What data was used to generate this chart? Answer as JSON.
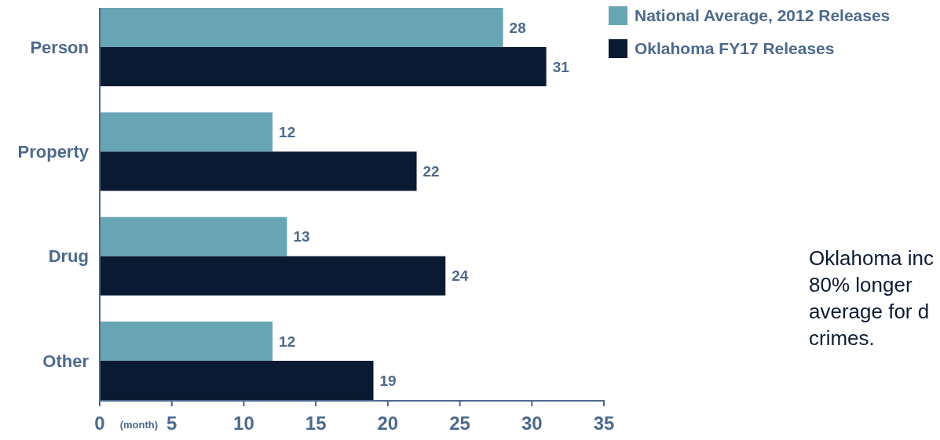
{
  "chart_data": {
    "type": "bar",
    "orientation": "horizontal",
    "categories": [
      "Person",
      "Property",
      "Drug",
      "Other"
    ],
    "series": [
      {
        "name": "National Average, 2012 Releases",
        "color": "#67a5b5",
        "values": [
          28,
          12,
          13,
          12
        ]
      },
      {
        "name": "Oklahoma FY17 Releases",
        "color": "#0b1a33",
        "values": [
          31,
          22,
          24,
          19
        ]
      }
    ],
    "xlim": [
      0,
      35
    ],
    "xticks": [
      0,
      5,
      10,
      15,
      20,
      25,
      30,
      35
    ],
    "xlabel": "(month)",
    "data_labels": true,
    "legend": "top right",
    "grid": false,
    "annotations": [
      "Oklahoma inc\n80% longer\naverage for d\ncrimes."
    ]
  }
}
